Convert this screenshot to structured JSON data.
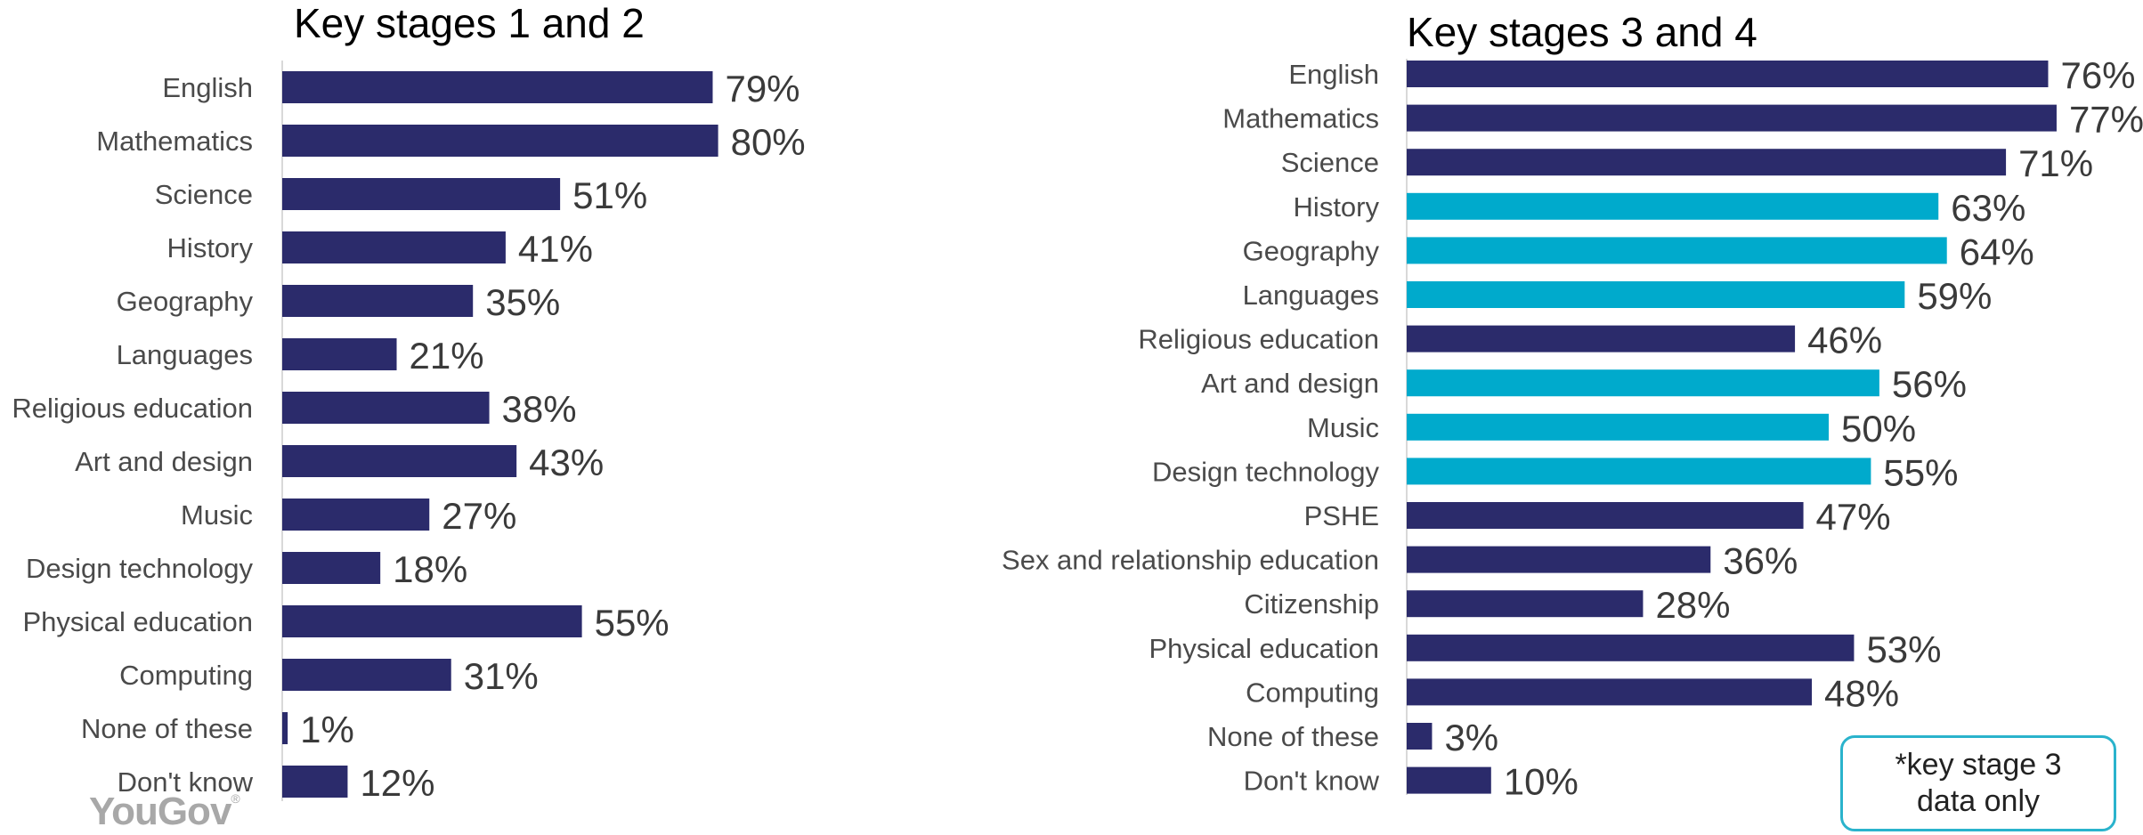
{
  "chart_data": [
    {
      "type": "bar",
      "orientation": "horizontal",
      "title": "Key stages 1 and 2",
      "categories": [
        "English",
        "Mathematics",
        "Science",
        "History",
        "Geography",
        "Languages",
        "Religious education",
        "Art and design",
        "Music",
        "Design technology",
        "Physical education",
        "Computing",
        "None of these",
        "Don't know"
      ],
      "values": [
        79,
        80,
        51,
        41,
        35,
        21,
        38,
        43,
        27,
        18,
        55,
        31,
        1,
        12
      ],
      "value_suffix": "%",
      "colors": [
        "#2b2b6b",
        "#2b2b6b",
        "#2b2b6b",
        "#2b2b6b",
        "#2b2b6b",
        "#2b2b6b",
        "#2b2b6b",
        "#2b2b6b",
        "#2b2b6b",
        "#2b2b6b",
        "#2b2b6b",
        "#2b2b6b",
        "#2b2b6b",
        "#2b2b6b"
      ],
      "xlim": [
        0,
        100
      ],
      "grid": false
    },
    {
      "type": "bar",
      "orientation": "horizontal",
      "title": "Key stages 3 and 4",
      "categories": [
        "English",
        "Mathematics",
        "Science",
        "History",
        "Geography",
        "Languages",
        "Religious education",
        "Art and design",
        "Music",
        "Design technology",
        "PSHE",
        "Sex and relationship education",
        "Citizenship",
        "Physical education",
        "Computing",
        "None of these",
        "Don't know"
      ],
      "values": [
        76,
        77,
        71,
        63,
        64,
        59,
        46,
        56,
        50,
        55,
        47,
        36,
        28,
        53,
        48,
        3,
        10
      ],
      "value_suffix": "%",
      "colors": [
        "#2b2b6b",
        "#2b2b6b",
        "#2b2b6b",
        "#00aacc",
        "#00aacc",
        "#00aacc",
        "#2b2b6b",
        "#00aacc",
        "#00aacc",
        "#00aacc",
        "#2b2b6b",
        "#2b2b6b",
        "#2b2b6b",
        "#2b2b6b",
        "#2b2b6b",
        "#2b2b6b",
        "#2b2b6b"
      ],
      "xlim": [
        0,
        100
      ],
      "grid": false
    }
  ],
  "note": {
    "line1": "*key stage 3",
    "line2": "data only"
  },
  "logo": {
    "text": "YouGov",
    "mark": "®"
  },
  "colors": {
    "primary": "#2b2b6b",
    "secondary": "#00aacc",
    "note_border": "#2ab3cc"
  }
}
